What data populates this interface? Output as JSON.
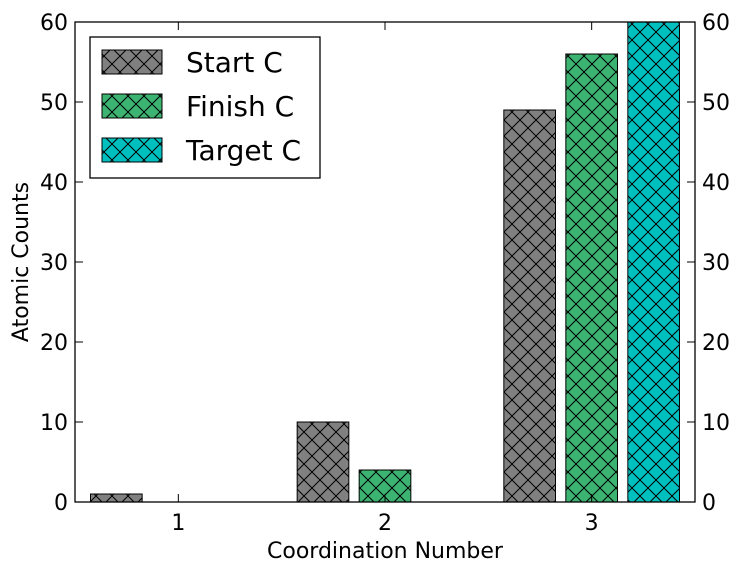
{
  "chart_data": {
    "type": "bar",
    "title": "",
    "xlabel": "Coordination Number",
    "ylabel": "Atomic Counts",
    "categories": [
      "1",
      "2",
      "3"
    ],
    "xlim": [
      0.5,
      3.5
    ],
    "ylim": [
      0,
      60
    ],
    "yticks": [
      "0",
      "10",
      "20",
      "30",
      "40",
      "50",
      "60"
    ],
    "right_yticks": [
      "0",
      "10",
      "20",
      "30",
      "40",
      "50",
      "60"
    ],
    "grid": false,
    "legend_position": "upper-left",
    "hatch": "cross-hatch",
    "series": [
      {
        "name": "Start C",
        "color": "#808080",
        "values": [
          1,
          10,
          49
        ]
      },
      {
        "name": "Finish C",
        "color": "#3cb371",
        "values": [
          0,
          4,
          56
        ]
      },
      {
        "name": "Target C",
        "color": "#00bfbf",
        "values": [
          0,
          0,
          60
        ]
      }
    ]
  }
}
